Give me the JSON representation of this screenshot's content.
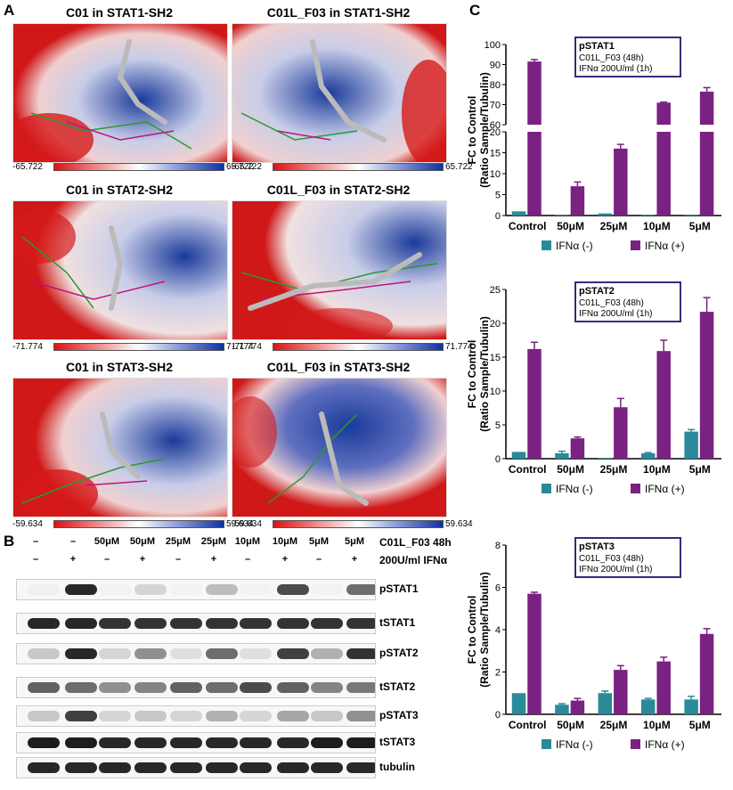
{
  "panels": {
    "a": "A",
    "b": "B",
    "c": "C"
  },
  "docking": [
    {
      "title": "C01 in STAT1-SH2",
      "min": "-65.722",
      "max": "65.722"
    },
    {
      "title": "C01L_F03 in STAT1-SH2",
      "min": "-65.722",
      "max": "65.722"
    },
    {
      "title": "C01 in STAT2-SH2",
      "min": "-71.774",
      "max": "71.774"
    },
    {
      "title": "C01L_F03 in STAT2-SH2",
      "min": "-71.774",
      "max": "71.774"
    },
    {
      "title": "C01 in STAT3-SH2",
      "min": "-59.634",
      "max": "59.634"
    },
    {
      "title": "C01L_F03 in STAT3-SH2",
      "min": "-59.634",
      "max": "59.634"
    }
  ],
  "western": {
    "treatment_row": [
      "–",
      "–",
      "50μM",
      "50μM",
      "25μM",
      "25μM",
      "10μM",
      "10μM",
      "5μM",
      "5μM"
    ],
    "ifn_row": [
      "–",
      "+",
      "–",
      "+",
      "–",
      "+",
      "–",
      "+",
      "–",
      "+"
    ],
    "treatment_label": "C01L_F03 48h",
    "ifn_label": "200U/ml IFNα",
    "rows": [
      "pSTAT1",
      "tSTAT1",
      "pSTAT2",
      "tSTAT2",
      "pSTAT3",
      "tSTAT3",
      "tubulin"
    ],
    "band_intensity": [
      [
        0.03,
        0.9,
        0.02,
        0.15,
        0.02,
        0.25,
        0.02,
        0.75,
        0.02,
        0.6
      ],
      [
        0.9,
        0.9,
        0.85,
        0.85,
        0.85,
        0.85,
        0.85,
        0.85,
        0.85,
        0.85
      ],
      [
        0.2,
        0.9,
        0.15,
        0.45,
        0.1,
        0.6,
        0.1,
        0.8,
        0.3,
        0.85
      ],
      [
        0.65,
        0.6,
        0.45,
        0.5,
        0.65,
        0.6,
        0.75,
        0.65,
        0.5,
        0.55
      ],
      [
        0.2,
        0.8,
        0.15,
        0.2,
        0.15,
        0.3,
        0.15,
        0.35,
        0.2,
        0.45
      ],
      [
        0.95,
        0.95,
        0.9,
        0.9,
        0.9,
        0.9,
        0.9,
        0.9,
        0.95,
        0.95
      ],
      [
        0.9,
        0.9,
        0.9,
        0.9,
        0.9,
        0.9,
        0.9,
        0.9,
        0.9,
        0.9
      ]
    ]
  },
  "colors": {
    "neg": "#2a8a99",
    "pos": "#7a2282",
    "inset_border": "#3a2a7a"
  },
  "chart_data": [
    {
      "type": "bar",
      "title": "pSTAT1",
      "inset_lines": [
        "C01L_F03 (48h)",
        "IFNα 200U/ml (1h)"
      ],
      "ylabel": "FC to Control",
      "ylabel2": "(Ratio Sample/Tubulin)",
      "categories": [
        "Control",
        "50μM",
        "25μM",
        "10μM",
        "5μM"
      ],
      "series": [
        {
          "name": "IFNα (-)",
          "values": [
            1.0,
            0.1,
            0.5,
            0.2,
            0.2
          ],
          "errors": [
            0,
            0,
            0,
            0,
            0
          ]
        },
        {
          "name": "IFNα (+)",
          "values": [
            91.5,
            7.0,
            16.0,
            71.0,
            76.5
          ],
          "errors": [
            1.0,
            1.0,
            1.0,
            0.3,
            2.0
          ]
        }
      ],
      "axis_break": {
        "lower": [
          0,
          20
        ],
        "upper": [
          60,
          100
        ]
      },
      "lower_ticks": [
        0,
        5,
        10,
        15,
        20
      ],
      "upper_ticks": [
        60,
        70,
        80,
        90,
        100
      ]
    },
    {
      "type": "bar",
      "title": "pSTAT2",
      "inset_lines": [
        "C01L_F03 (48h)",
        "IFNα 200U/ml (1h)"
      ],
      "ylabel": "FC to Control",
      "ylabel2": "(Ratio Sample/Tubulin)",
      "categories": [
        "Control",
        "50μM",
        "25μM",
        "10μM",
        "5μM"
      ],
      "series": [
        {
          "name": "IFNα (-)",
          "values": [
            1.0,
            0.8,
            0.1,
            0.8,
            4.0
          ],
          "errors": [
            0,
            0.3,
            0,
            0.1,
            0.3
          ]
        },
        {
          "name": "IFNα (+)",
          "values": [
            16.2,
            3.0,
            7.6,
            15.9,
            21.7
          ],
          "errors": [
            1.0,
            0.2,
            1.3,
            1.6,
            2.1
          ]
        }
      ],
      "ylim": [
        0,
        25
      ],
      "ticks": [
        0,
        5,
        10,
        15,
        20,
        25
      ]
    },
    {
      "type": "bar",
      "title": "pSTAT3",
      "inset_lines": [
        "C01L_F03 (48h)",
        "IFNα 200U/ml (1h)"
      ],
      "ylabel": "FC to Control",
      "ylabel2": "(Ratio Sample/Tubulin)",
      "categories": [
        "Control",
        "50μM",
        "25μM",
        "10μM",
        "5μM"
      ],
      "series": [
        {
          "name": "IFNα (-)",
          "values": [
            1.0,
            0.45,
            1.0,
            0.7,
            0.7
          ],
          "errors": [
            0,
            0.05,
            0.1,
            0.05,
            0.15
          ]
        },
        {
          "name": "IFNα (+)",
          "values": [
            5.7,
            0.65,
            2.1,
            2.5,
            3.8
          ],
          "errors": [
            0.07,
            0.1,
            0.2,
            0.2,
            0.25
          ]
        }
      ],
      "ylim": [
        0,
        8
      ],
      "ticks": [
        0,
        2,
        4,
        6,
        8
      ]
    }
  ]
}
